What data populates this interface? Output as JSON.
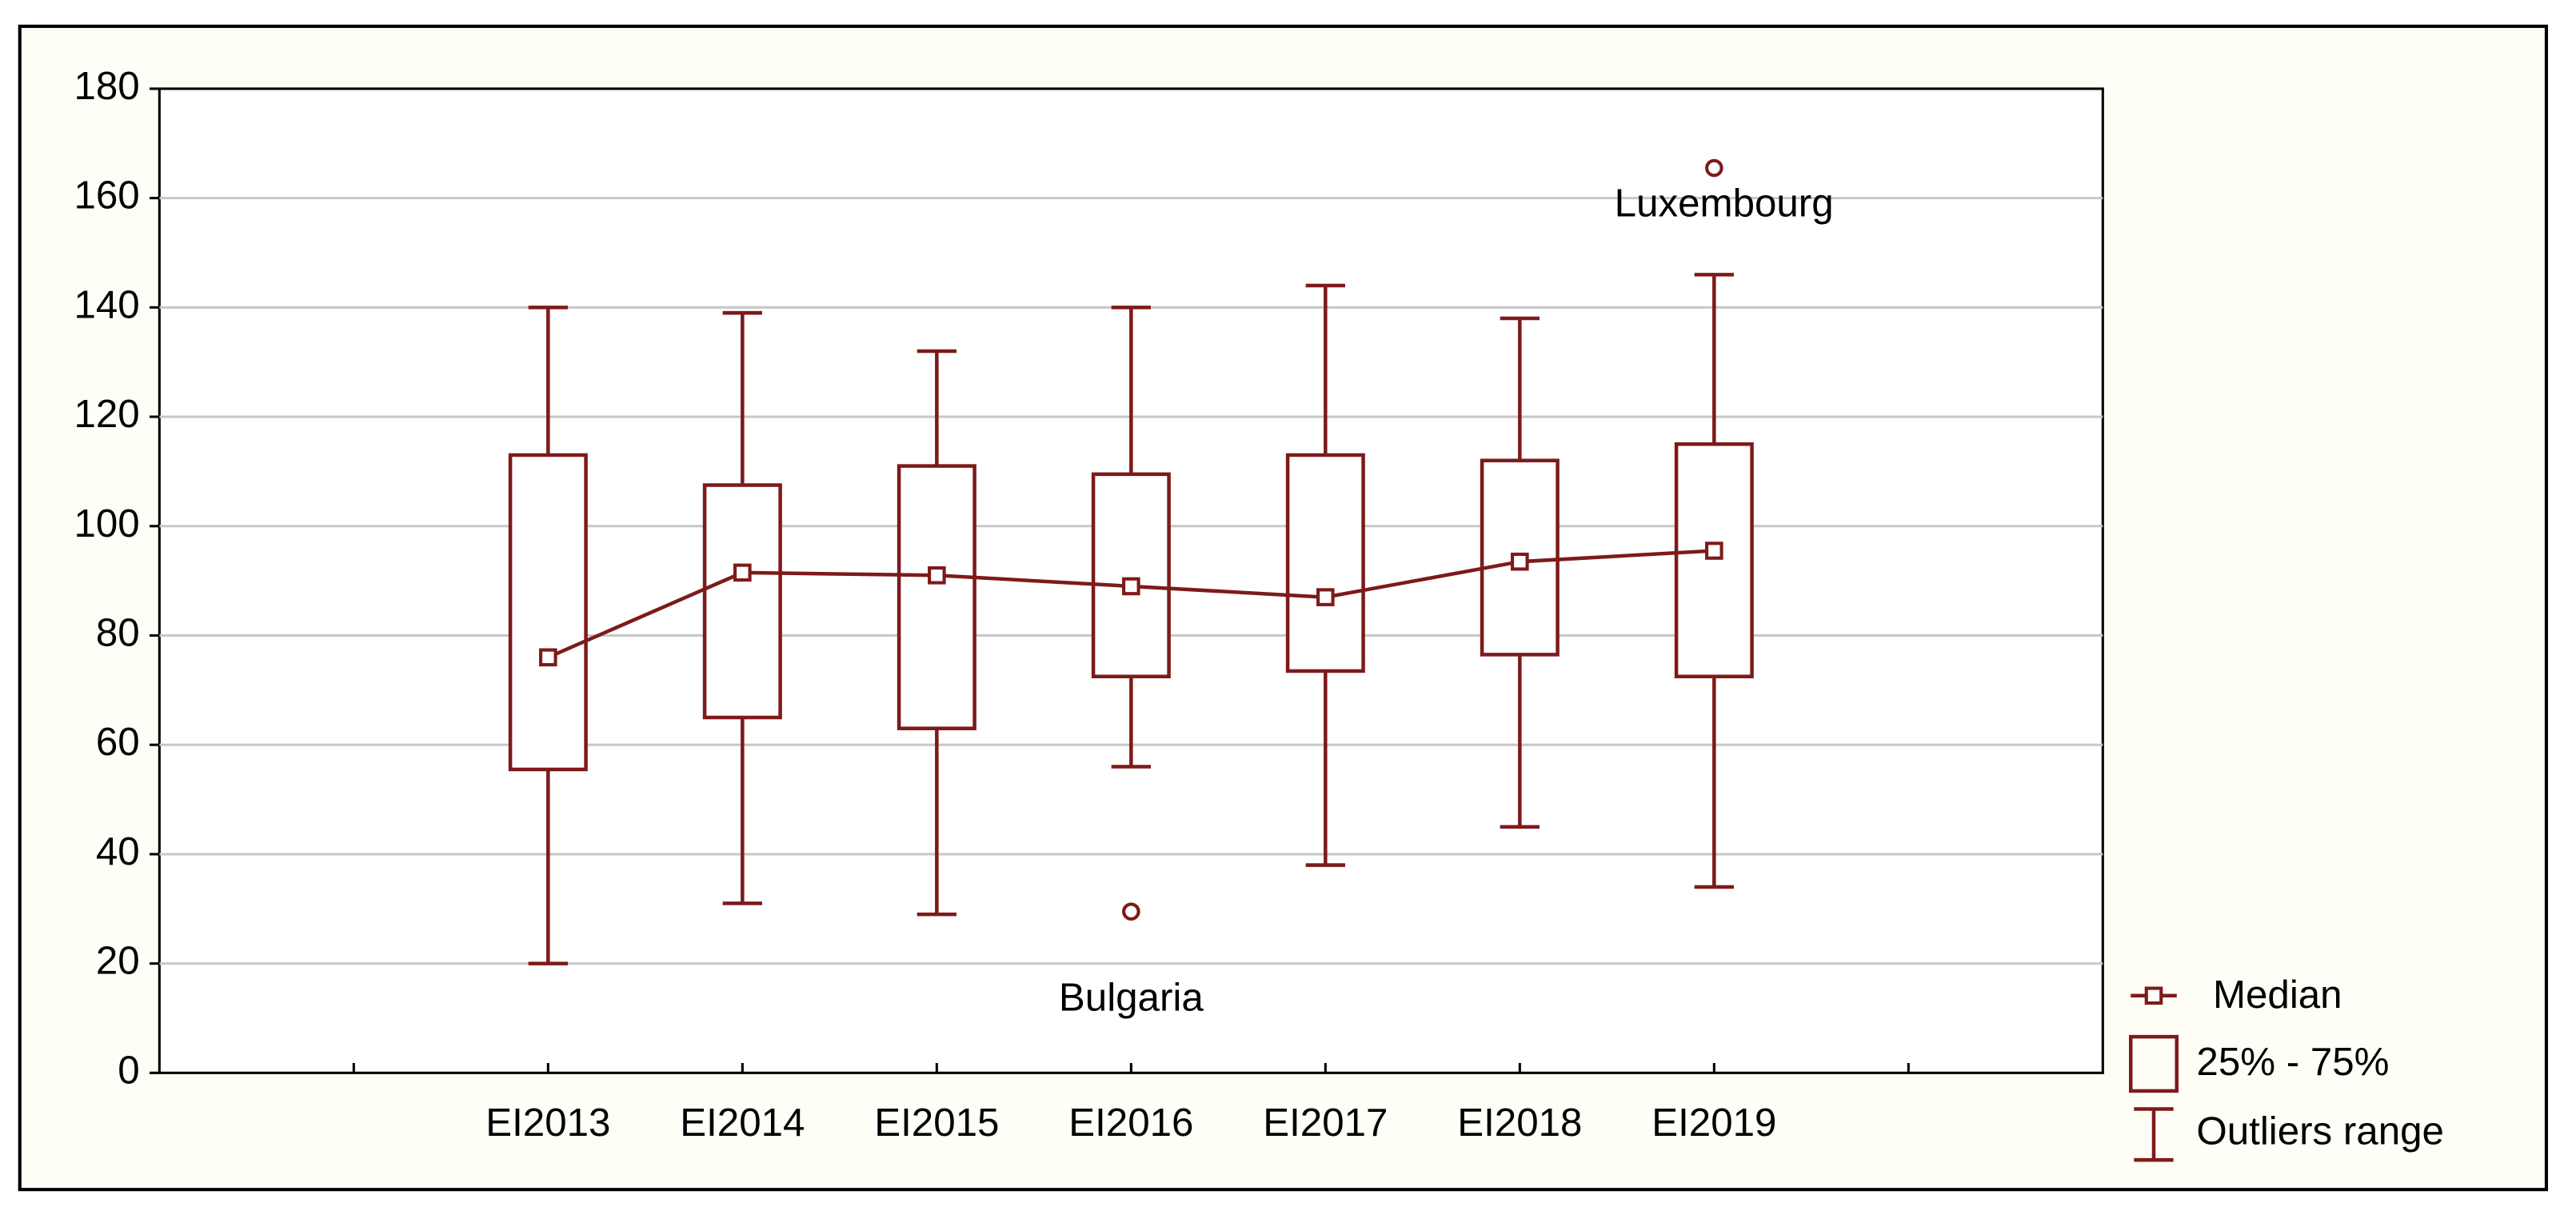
{
  "chart_data": {
    "type": "box",
    "categories": [
      "EI2013",
      "EI2014",
      "EI2015",
      "EI2016",
      "EI2017",
      "EI2018",
      "EI2019"
    ],
    "min": [
      20,
      31,
      29,
      56,
      38,
      45,
      34
    ],
    "q1": [
      55.5,
      65,
      63,
      72.5,
      73.5,
      76.5,
      72.5
    ],
    "median": [
      76,
      91.5,
      91,
      89,
      87,
      93.5,
      95.5
    ],
    "q3": [
      113,
      107.5,
      111,
      109.5,
      113,
      112,
      115
    ],
    "max": [
      140,
      139,
      132,
      140,
      144,
      138,
      146
    ],
    "outliers": [
      {
        "category": "EI2016",
        "value": 29.5,
        "label": "Bulgaria"
      },
      {
        "category": "EI2019",
        "value": 165.5,
        "label": "Luxembourg"
      }
    ],
    "color": "#7d1a1a",
    "ylim": [
      0,
      180
    ],
    "yticks": [
      0,
      20,
      40,
      60,
      80,
      100,
      120,
      140,
      160,
      180
    ],
    "grid": true,
    "legend": {
      "median": "Median",
      "box": "25% - 75%",
      "range": "Outliers range"
    }
  }
}
